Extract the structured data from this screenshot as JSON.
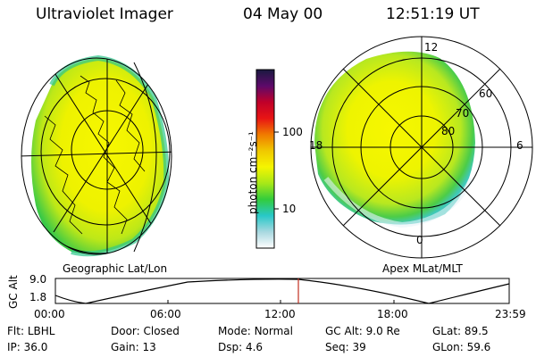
{
  "header": {
    "instrument": "Ultraviolet Imager",
    "date": "04 May 00",
    "time": "12:51:19 UT"
  },
  "colorbar": {
    "unit_label": "photon cm⁻²s⁻¹",
    "ticks": [
      "100",
      "10"
    ],
    "colors": [
      "#1a1a40",
      "#5c0a6a",
      "#c0002a",
      "#e81414",
      "#f07a00",
      "#f0c800",
      "#f5f500",
      "#a8e818",
      "#32cc3c",
      "#28c8c8",
      "#a8d8e0",
      "#ffffff"
    ]
  },
  "left_map": {
    "caption": "Geographic Lat/Lon"
  },
  "right_map": {
    "caption": "Apex MLat/MLT",
    "mlt_labels": {
      "top": "12",
      "left": "18",
      "right": "6",
      "bottom": "0"
    },
    "mlat_labels": [
      "60",
      "70",
      "80"
    ]
  },
  "altitude_plot": {
    "ylabel": "GC Alt",
    "yticks": [
      "9.0",
      "1.8"
    ],
    "xticks": [
      "00:00",
      "06:00",
      "12:00",
      "18:00",
      "23:59"
    ],
    "marker_color": "#c03020"
  },
  "info": {
    "row1": [
      {
        "label": "Flt:",
        "value": "LBHL"
      },
      {
        "label": "Door:",
        "value": "Closed"
      },
      {
        "label": "Mode:",
        "value": "Normal"
      },
      {
        "label": "GC Alt:",
        "value": "9.0 Re"
      },
      {
        "label": "GLat:",
        "value": "89.5"
      }
    ],
    "row2": [
      {
        "label": "IP:",
        "value": "36.0"
      },
      {
        "label": "Gain:",
        "value": "13"
      },
      {
        "label": "Dsp:",
        "value": "4.6"
      },
      {
        "label": "Seq:",
        "value": "39"
      },
      {
        "label": "GLon:",
        "value": "59.6"
      }
    ]
  }
}
